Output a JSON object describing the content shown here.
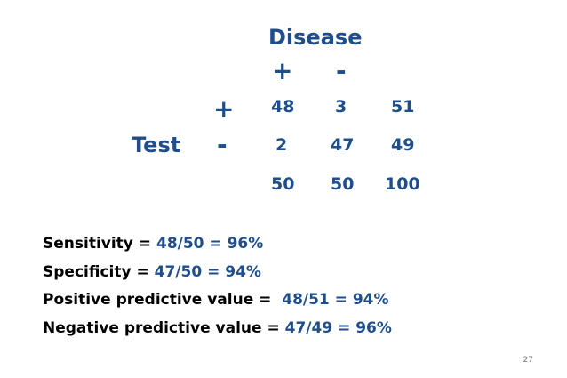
{
  "table": {
    "disease_label": "Disease",
    "test_label": "Test",
    "col_signs": [
      "+",
      "-"
    ],
    "row_signs": [
      "+",
      "-"
    ],
    "rows": [
      [
        "48",
        "3",
        "51"
      ],
      [
        "2",
        "47",
        "49"
      ],
      [
        "50",
        "50",
        "100"
      ]
    ]
  },
  "stats": [
    {
      "label": "Sensitivity = ",
      "value": "48/50 = 96%"
    },
    {
      "label": "Specificity = ",
      "value": "47/50 = 94%"
    },
    {
      "label": "Positive predictive value =  ",
      "value": "48/51 = 94%"
    },
    {
      "label": "Negative predictive value = ",
      "value": "47/49 = 96%"
    }
  ],
  "page_number": "27",
  "colors": {
    "accent": "#1f4e8c",
    "text": "#000000"
  }
}
